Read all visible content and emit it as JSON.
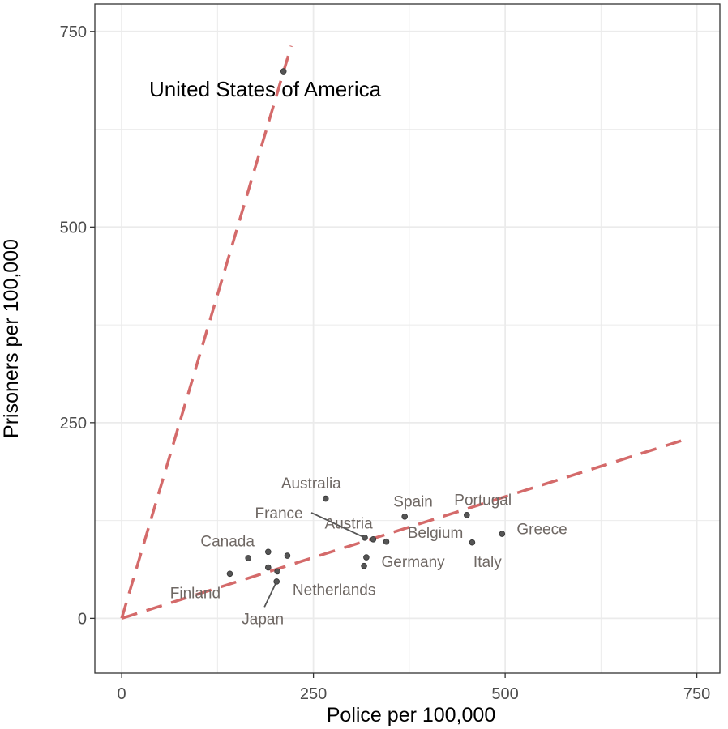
{
  "chart_data": {
    "type": "scatter",
    "title": "",
    "xlabel": "Police per 100,000",
    "ylabel": "Prisoners per 100,000",
    "xlim": [
      -35,
      780
    ],
    "ylim": [
      -70,
      785
    ],
    "xticks": [
      0,
      250,
      500,
      750
    ],
    "yticks": [
      0,
      250,
      500,
      750
    ],
    "xtick_labels": [
      "0",
      "250",
      "500",
      "750"
    ],
    "ytick_labels": [
      "0",
      "250",
      "500",
      "750"
    ],
    "grid": true,
    "colors": {
      "point": "#555555",
      "line": "#d46a6a",
      "label": "#6f6864",
      "grid": "#ebebeb"
    },
    "points": [
      {
        "name": "United States of America",
        "x": 211,
        "y": 699,
        "lx": 187,
        "ly": 674,
        "style": "big"
      },
      {
        "name": "Australia",
        "x": 266,
        "y": 153,
        "lx": 247,
        "ly": 173
      },
      {
        "name": "Spain",
        "x": 369,
        "y": 130,
        "lx": 380,
        "ly": 150
      },
      {
        "name": "Portugal",
        "x": 450,
        "y": 132,
        "lx": 471,
        "ly": 152
      },
      {
        "name": "Greece",
        "x": 496,
        "y": 108,
        "lx": 548,
        "ly": 115
      },
      {
        "name": "Italy",
        "x": 457,
        "y": 97,
        "lx": 477,
        "ly": 73
      },
      {
        "name": "France",
        "x": 317,
        "y": 103,
        "lx": 205,
        "ly": 135,
        "leader": true
      },
      {
        "name": "Austria",
        "x": 328,
        "y": 101,
        "lx": 296,
        "ly": 122
      },
      {
        "name": "Belgium",
        "x": 345,
        "y": 98,
        "lx": 409,
        "ly": 110
      },
      {
        "name": "Germany",
        "x": 319,
        "y": 78,
        "lx": 380,
        "ly": 73
      },
      {
        "name": "",
        "x": 316,
        "y": 67
      },
      {
        "name": "Canada",
        "x": 165,
        "y": 77,
        "lx": 138,
        "ly": 99
      },
      {
        "name": "",
        "x": 191,
        "y": 85
      },
      {
        "name": "",
        "x": 216,
        "y": 80
      },
      {
        "name": "",
        "x": 191,
        "y": 65
      },
      {
        "name": "Netherlands",
        "x": 203,
        "y": 60,
        "lx": 277,
        "ly": 37
      },
      {
        "name": "Japan",
        "x": 202,
        "y": 47,
        "lx": 184,
        "ly": 0,
        "leader": true
      },
      {
        "name": "Finland",
        "x": 141,
        "y": 57,
        "lx": 96,
        "ly": 33
      }
    ],
    "reference_lines": [
      {
        "slope": 3.31,
        "x_end": 221
      },
      {
        "slope": 0.311,
        "x_end": 740
      }
    ]
  }
}
